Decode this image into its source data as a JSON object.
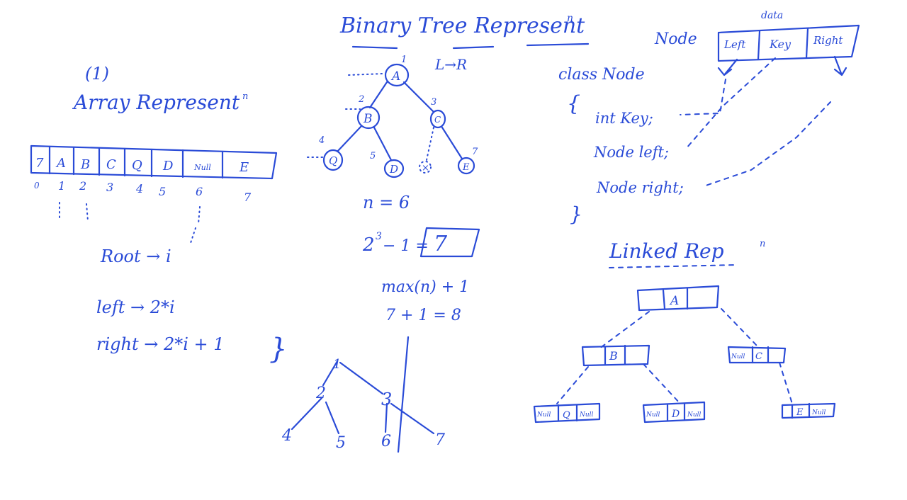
{
  "colors": {
    "ink": "#2a4bd7",
    "background": "#ffffff"
  },
  "title": {
    "text": "Binary Tree Represent",
    "suffix": "n",
    "sub": "L→R"
  },
  "array_section": {
    "number": "(1)",
    "heading": "Array Represent",
    "heading_suffix": "n",
    "cells": [
      "7",
      "A",
      "B",
      "C",
      "Q",
      "D",
      "Null",
      "E"
    ],
    "indices": [
      "0",
      "1",
      "2",
      "3",
      "4",
      "5",
      "6",
      "7"
    ],
    "root": "Root → i",
    "left": "left → 2*i",
    "right": "right → 2*i + 1",
    "brace": "}"
  },
  "tree": {
    "nodes": [
      {
        "label": "A",
        "num": "1"
      },
      {
        "label": "B",
        "num": "2"
      },
      {
        "label": "C",
        "num": "3"
      },
      {
        "label": "Q",
        "num": "4"
      },
      {
        "label": "D",
        "num": "5"
      },
      {
        "label": "×",
        "num": ""
      },
      {
        "label": "E",
        "num": "7"
      }
    ],
    "n_eq": "n = 6",
    "formula_left": "2",
    "formula_exp": "3",
    "formula_right": " − 1 = ",
    "formula_box": "7",
    "max_line": "max(n) + 1",
    "sum_line": "7 + 1 = 8",
    "sketch_labels": [
      "1",
      "2",
      "3",
      "4",
      "5",
      "6",
      "7"
    ]
  },
  "node_class": {
    "node_label": "Node",
    "data_label": "data",
    "fields": [
      "Left",
      "Key",
      "Right"
    ],
    "class_decl": "class Node",
    "open_brace": "{",
    "lines": [
      "int Key;",
      "Node left;",
      "Node right;"
    ],
    "close_brace": "}"
  },
  "linked_rep": {
    "heading": "Linked Rep",
    "heading_suffix": "n",
    "nodes": [
      {
        "left": "",
        "key": "A",
        "right": ""
      },
      {
        "left": "",
        "key": "B",
        "right": ""
      },
      {
        "left": "Null",
        "key": "C",
        "right": ""
      },
      {
        "left": "Null",
        "key": "Q",
        "right": "Null"
      },
      {
        "left": "Null",
        "key": "D",
        "right": "Null"
      },
      {
        "left": "",
        "key": "E",
        "right": "Null"
      }
    ]
  }
}
